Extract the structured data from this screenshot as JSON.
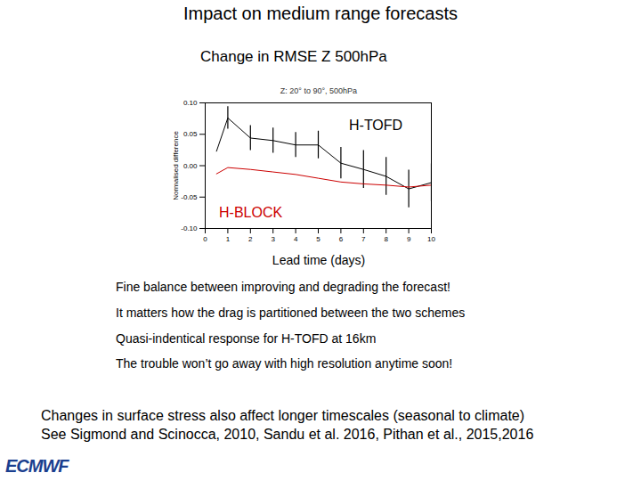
{
  "chart_data": {
    "type": "line",
    "title": "Z: 20° to 90°, 500hPa",
    "x_label": "Lead time (days)",
    "y_label": "Normalised difference",
    "x": [
      0.5,
      1,
      2,
      3,
      4,
      5,
      6,
      7,
      8,
      9,
      10
    ],
    "series": [
      {
        "name": "H-TOFD",
        "color": "#000000",
        "values": [
          0.023,
          0.076,
          0.044,
          0.04,
          0.033,
          0.033,
          0.004,
          -0.006,
          -0.017,
          -0.037,
          -0.027
        ],
        "error": [
          null,
          0.018,
          0.02,
          0.02,
          0.02,
          0.022,
          0.025,
          0.03,
          0.03,
          0.03,
          0.03
        ]
      },
      {
        "name": "H-BLOCK",
        "color": "#cc0000",
        "values": [
          -0.013,
          -0.003,
          -0.006,
          -0.01,
          -0.014,
          -0.02,
          -0.026,
          -0.029,
          -0.031,
          -0.034,
          -0.031
        ]
      }
    ],
    "xlim": [
      0,
      10
    ],
    "xticks": [
      0,
      1,
      2,
      3,
      4,
      5,
      6,
      7,
      8,
      9,
      10
    ],
    "ylim": [
      -0.1,
      0.1
    ],
    "yticks": [
      {
        "value": -0.1,
        "label": "-0.10"
      },
      {
        "value": -0.05,
        "label": "-0.05"
      },
      {
        "value": 0,
        "label": "0.00"
      },
      {
        "value": 0.05,
        "label": "0.05"
      },
      {
        "value": 0.1,
        "label": "0.10"
      }
    ],
    "grid": false
  },
  "slide": {
    "title": "Impact on medium range forecasts",
    "subtitle": "Change in RMSE Z 500hPa",
    "bullets": [
      "Fine balance between improving and degrading the forecast!",
      "It matters how the drag is partitioned between the two schemes",
      "Quasi-indentical response for H-TOFD at 16km",
      "The trouble won’t go away with high resolution anytime soon!"
    ],
    "footer": [
      "Changes in surface stress also affect longer timescales (seasonal to climate)",
      "See Sigmond and Scinocca, 2010, Sandu et al. 2016, Pithan et al., 2015,2016"
    ],
    "logo": "ECMWF"
  }
}
